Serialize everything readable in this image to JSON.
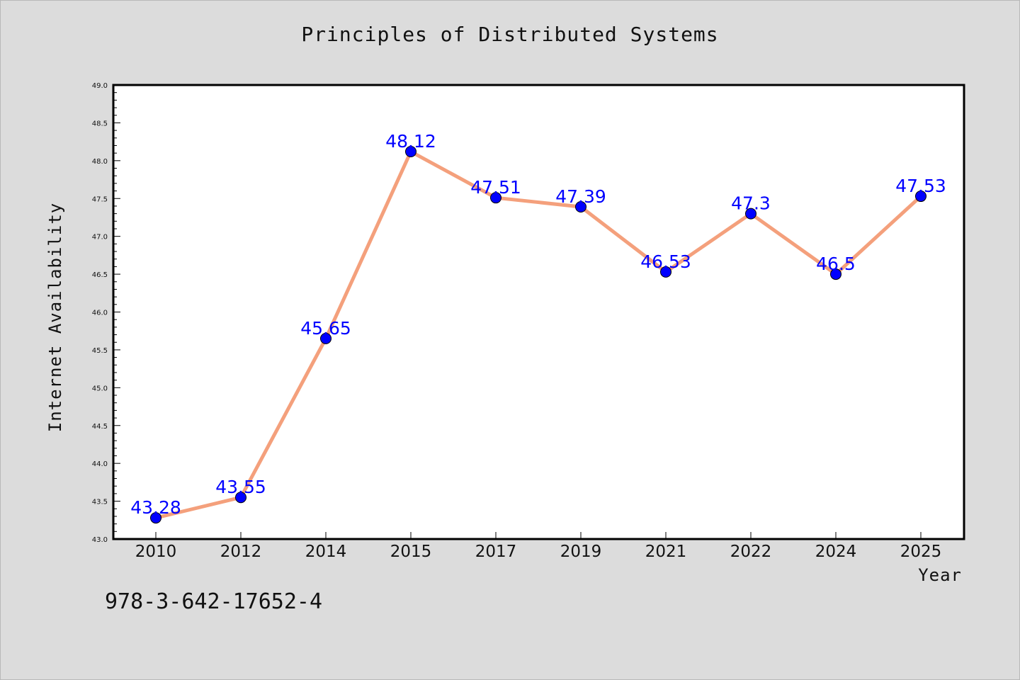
{
  "chart_data": {
    "type": "line",
    "title": "Principles of Distributed Systems",
    "xlabel": "Year",
    "ylabel": "Internet Availability",
    "categories": [
      "2010",
      "2012",
      "2014",
      "2015",
      "2017",
      "2019",
      "2021",
      "2022",
      "2024",
      "2025"
    ],
    "series": [
      {
        "values": [
          43.28,
          43.55,
          45.65,
          48.12,
          47.51,
          47.39,
          46.53,
          47.3,
          46.5,
          47.53
        ],
        "data_labels": [
          "43.28",
          "43.55",
          "45.65",
          "48.12",
          "47.51",
          "47.39",
          "46.53",
          "47.3",
          "46.5",
          "47.53"
        ],
        "line_color": "#f4a07c",
        "marker_color": "#0000ff"
      }
    ],
    "ylim": [
      43.0,
      49.0
    ],
    "yticks": [
      "43.0",
      "43.5",
      "44.0",
      "44.5",
      "45.0",
      "45.5",
      "46.0",
      "46.5",
      "47.0",
      "47.5",
      "48.0",
      "48.5",
      "49.0"
    ],
    "grid": false,
    "legend": "none"
  },
  "footer": {
    "isbn": "978-3-642-17652-4"
  },
  "colors": {
    "background": "#dcdcdc",
    "plot_area": "#ffffff",
    "line": "#f4a07c",
    "marker": "#0000ff",
    "data_label": "#0000ff"
  }
}
